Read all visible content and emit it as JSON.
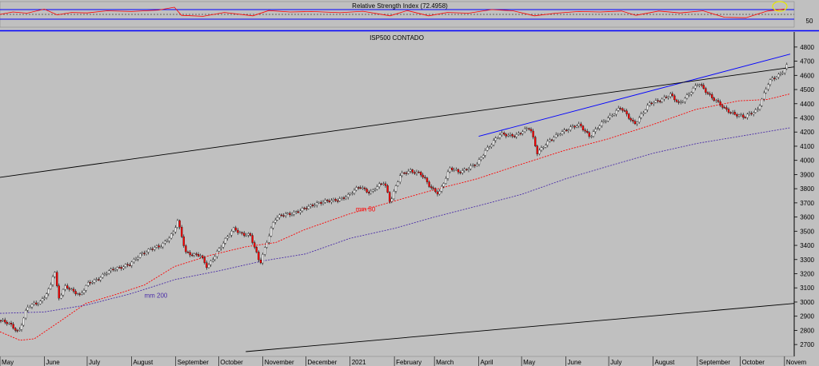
{
  "colors": {
    "background": "#c0c0c0",
    "rsi_line": "#ff0000",
    "rsi_band": "#0000ff",
    "upper_trend": "#0000ff",
    "channel": "#000000",
    "ma50": "#ff0000",
    "ma200": "#4b2ea8",
    "candle_up": "#ffffff",
    "candle_down": "#ff0000",
    "rsi_marker": "#e8e800"
  },
  "rsi_panel": {
    "title": "Relative Strength Index (72.4958)",
    "tick_label": "50",
    "ylim": [
      0,
      100
    ],
    "levels": [
      70,
      30,
      50
    ]
  },
  "chart_data": {
    "type": "line",
    "title": "ISP500 CONTADO",
    "xlabel": "",
    "ylabel": "",
    "x_range": [
      "2020-05-01",
      "2021-11-05"
    ],
    "ylim": [
      2650,
      4850
    ],
    "y_ticks": [
      2700,
      2800,
      2900,
      3000,
      3100,
      3200,
      3300,
      3400,
      3500,
      3600,
      3700,
      3800,
      3900,
      4000,
      4100,
      4200,
      4300,
      4400,
      4500,
      4600,
      4700,
      4800
    ],
    "x_ticks": [
      {
        "date": "2020-05-01",
        "label": "May"
      },
      {
        "date": "2020-06-01",
        "label": "June"
      },
      {
        "date": "2020-07-01",
        "label": "July"
      },
      {
        "date": "2020-08-01",
        "label": "August"
      },
      {
        "date": "2020-09-01",
        "label": "September"
      },
      {
        "date": "2020-10-01",
        "label": "October"
      },
      {
        "date": "2020-11-01",
        "label": "November"
      },
      {
        "date": "2020-12-01",
        "label": "December"
      },
      {
        "date": "2021-01-01",
        "label": "2021"
      },
      {
        "date": "2021-02-01",
        "label": "February"
      },
      {
        "date": "2021-03-01",
        "label": "March"
      },
      {
        "date": "2021-04-01",
        "label": "April"
      },
      {
        "date": "2021-05-01",
        "label": "May"
      },
      {
        "date": "2021-06-01",
        "label": "June"
      },
      {
        "date": "2021-07-01",
        "label": "July"
      },
      {
        "date": "2021-08-01",
        "label": "August"
      },
      {
        "date": "2021-09-01",
        "label": "September"
      },
      {
        "date": "2021-10-01",
        "label": "October"
      },
      {
        "date": "2021-11-01",
        "label": "Novem"
      }
    ],
    "series": [
      {
        "name": "ISP500 CONTADO",
        "points": [
          [
            "2020-05-01",
            2870
          ],
          [
            "2020-05-08",
            2840
          ],
          [
            "2020-05-14",
            2790
          ],
          [
            "2020-05-20",
            2960
          ],
          [
            "2020-05-29",
            3000
          ],
          [
            "2020-06-05",
            3100
          ],
          [
            "2020-06-08",
            3230
          ],
          [
            "2020-06-11",
            3020
          ],
          [
            "2020-06-16",
            3120
          ],
          [
            "2020-06-26",
            3040
          ],
          [
            "2020-07-02",
            3140
          ],
          [
            "2020-07-10",
            3170
          ],
          [
            "2020-07-20",
            3240
          ],
          [
            "2020-07-31",
            3260
          ],
          [
            "2020-08-07",
            3340
          ],
          [
            "2020-08-14",
            3370
          ],
          [
            "2020-08-21",
            3390
          ],
          [
            "2020-08-31",
            3500
          ],
          [
            "2020-09-02",
            3580
          ],
          [
            "2020-09-08",
            3350
          ],
          [
            "2020-09-18",
            3330
          ],
          [
            "2020-09-23",
            3240
          ],
          [
            "2020-09-30",
            3360
          ],
          [
            "2020-10-12",
            3520
          ],
          [
            "2020-10-16",
            3490
          ],
          [
            "2020-10-23",
            3470
          ],
          [
            "2020-10-30",
            3270
          ],
          [
            "2020-11-04",
            3440
          ],
          [
            "2020-11-09",
            3580
          ],
          [
            "2020-11-16",
            3620
          ],
          [
            "2020-11-27",
            3640
          ],
          [
            "2020-12-08",
            3700
          ],
          [
            "2020-12-18",
            3710
          ],
          [
            "2020-12-31",
            3750
          ],
          [
            "2021-01-08",
            3820
          ],
          [
            "2021-01-15",
            3770
          ],
          [
            "2021-01-25",
            3850
          ],
          [
            "2021-01-29",
            3710
          ],
          [
            "2021-02-05",
            3890
          ],
          [
            "2021-02-12",
            3930
          ],
          [
            "2021-02-19",
            3910
          ],
          [
            "2021-02-26",
            3810
          ],
          [
            "2021-03-04",
            3770
          ],
          [
            "2021-03-12",
            3940
          ],
          [
            "2021-03-18",
            3920
          ],
          [
            "2021-03-31",
            3970
          ],
          [
            "2021-04-06",
            4080
          ],
          [
            "2021-04-16",
            4180
          ],
          [
            "2021-04-28",
            4180
          ],
          [
            "2021-05-07",
            4230
          ],
          [
            "2021-05-12",
            4060
          ],
          [
            "2021-05-19",
            4120
          ],
          [
            "2021-05-28",
            4200
          ],
          [
            "2021-06-11",
            4250
          ],
          [
            "2021-06-18",
            4170
          ],
          [
            "2021-06-30",
            4300
          ],
          [
            "2021-07-09",
            4370
          ],
          [
            "2021-07-19",
            4260
          ],
          [
            "2021-07-30",
            4400
          ],
          [
            "2021-08-13",
            4460
          ],
          [
            "2021-08-19",
            4400
          ],
          [
            "2021-08-31",
            4520
          ],
          [
            "2021-09-02",
            4540
          ],
          [
            "2021-09-10",
            4460
          ],
          [
            "2021-09-20",
            4360
          ],
          [
            "2021-09-30",
            4320
          ],
          [
            "2021-10-04",
            4300
          ],
          [
            "2021-10-13",
            4360
          ],
          [
            "2021-10-21",
            4550
          ],
          [
            "2021-10-29",
            4610
          ],
          [
            "2021-11-04",
            4690
          ]
        ]
      },
      {
        "name": "mm 50",
        "points": [
          [
            "2020-05-01",
            2790
          ],
          [
            "2020-05-15",
            2730
          ],
          [
            "2020-05-25",
            2740
          ],
          [
            "2020-06-10",
            2850
          ],
          [
            "2020-06-30",
            2990
          ],
          [
            "2020-07-20",
            3050
          ],
          [
            "2020-08-10",
            3120
          ],
          [
            "2020-08-31",
            3250
          ],
          [
            "2020-09-25",
            3330
          ],
          [
            "2020-10-20",
            3390
          ],
          [
            "2020-11-10",
            3420
          ],
          [
            "2020-11-30",
            3510
          ],
          [
            "2020-12-31",
            3620
          ],
          [
            "2021-01-31",
            3710
          ],
          [
            "2021-02-28",
            3790
          ],
          [
            "2021-03-31",
            3870
          ],
          [
            "2021-04-30",
            3970
          ],
          [
            "2021-05-31",
            4070
          ],
          [
            "2021-06-30",
            4150
          ],
          [
            "2021-07-31",
            4250
          ],
          [
            "2021-08-31",
            4360
          ],
          [
            "2021-09-30",
            4420
          ],
          [
            "2021-10-20",
            4430
          ],
          [
            "2021-11-05",
            4470
          ]
        ]
      },
      {
        "name": "mm 200",
        "points": [
          [
            "2020-05-01",
            2920
          ],
          [
            "2020-06-01",
            2930
          ],
          [
            "2020-07-01",
            2980
          ],
          [
            "2020-08-01",
            3060
          ],
          [
            "2020-09-01",
            3160
          ],
          [
            "2020-10-01",
            3220
          ],
          [
            "2020-11-01",
            3290
          ],
          [
            "2020-12-01",
            3340
          ],
          [
            "2021-01-01",
            3450
          ],
          [
            "2021-02-01",
            3520
          ],
          [
            "2021-03-01",
            3600
          ],
          [
            "2021-04-01",
            3680
          ],
          [
            "2021-05-01",
            3760
          ],
          [
            "2021-06-01",
            3870
          ],
          [
            "2021-07-01",
            3960
          ],
          [
            "2021-08-01",
            4050
          ],
          [
            "2021-09-01",
            4120
          ],
          [
            "2021-10-01",
            4170
          ],
          [
            "2021-11-05",
            4230
          ]
        ]
      }
    ],
    "series_labels": [
      {
        "name": "mm 50",
        "at": [
          "2021-01-05",
          3640
        ]
      },
      {
        "name": "mm 200",
        "at": [
          "2020-08-10",
          3030
        ]
      }
    ],
    "trendlines": [
      {
        "name": "upper-resistance",
        "color": "#0000ff",
        "from": [
          "2021-04-01",
          4170
        ],
        "to": [
          "2021-11-05",
          4750
        ]
      },
      {
        "name": "channel-top",
        "color": "#000000",
        "from": [
          "2020-05-01",
          3880
        ],
        "to": [
          "2021-11-08",
          4660
        ]
      },
      {
        "name": "channel-bottom",
        "color": "#000000",
        "from": [
          "2020-10-20",
          2650
        ],
        "to": [
          "2021-11-08",
          2990
        ]
      }
    ],
    "rsi": [
      [
        "2020-05-01",
        50
      ],
      [
        "2020-05-10",
        60
      ],
      [
        "2020-05-20",
        55
      ],
      [
        "2020-06-01",
        72
      ],
      [
        "2020-06-10",
        48
      ],
      [
        "2020-06-20",
        58
      ],
      [
        "2020-07-01",
        56
      ],
      [
        "2020-07-15",
        65
      ],
      [
        "2020-08-01",
        62
      ],
      [
        "2020-08-20",
        68
      ],
      [
        "2020-08-31",
        80
      ],
      [
        "2020-09-05",
        46
      ],
      [
        "2020-09-20",
        42
      ],
      [
        "2020-10-05",
        58
      ],
      [
        "2020-10-25",
        44
      ],
      [
        "2020-11-05",
        66
      ],
      [
        "2020-11-20",
        60
      ],
      [
        "2020-12-05",
        62
      ],
      [
        "2020-12-25",
        57
      ],
      [
        "2021-01-10",
        63
      ],
      [
        "2021-01-29",
        44
      ],
      [
        "2021-02-10",
        66
      ],
      [
        "2021-02-25",
        44
      ],
      [
        "2021-03-10",
        58
      ],
      [
        "2021-03-25",
        55
      ],
      [
        "2021-04-10",
        70
      ],
      [
        "2021-04-25",
        65
      ],
      [
        "2021-05-10",
        44
      ],
      [
        "2021-05-25",
        55
      ],
      [
        "2021-06-10",
        62
      ],
      [
        "2021-06-25",
        60
      ],
      [
        "2021-07-10",
        64
      ],
      [
        "2021-07-20",
        46
      ],
      [
        "2021-08-05",
        64
      ],
      [
        "2021-08-20",
        56
      ],
      [
        "2021-09-05",
        65
      ],
      [
        "2021-09-20",
        38
      ],
      [
        "2021-10-05",
        36
      ],
      [
        "2021-10-20",
        64
      ],
      [
        "2021-11-01",
        72.5
      ]
    ]
  }
}
